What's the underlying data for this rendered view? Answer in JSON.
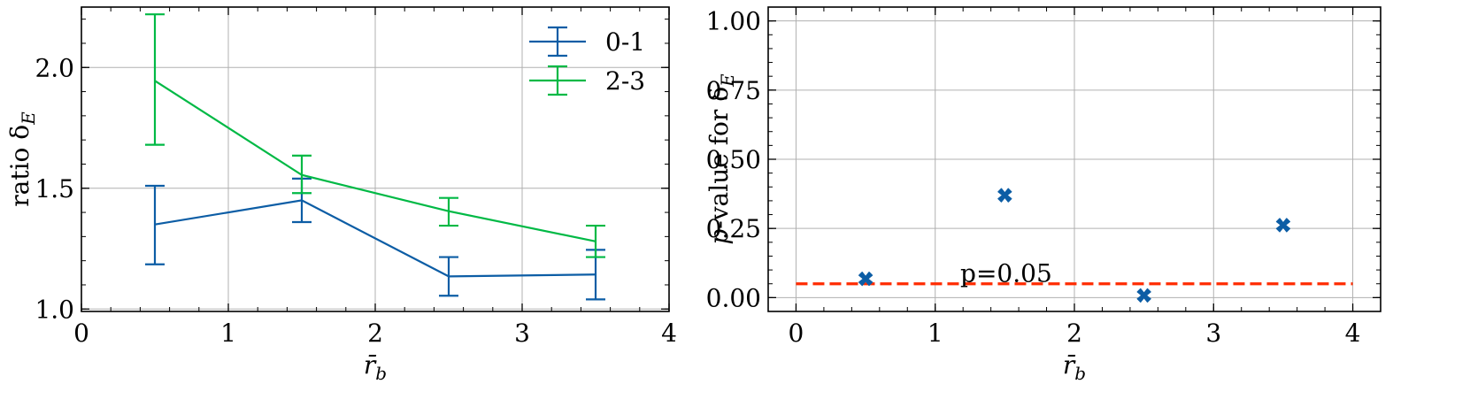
{
  "chart_data": [
    {
      "type": "line",
      "error_bars": true,
      "title": "",
      "xlabel": "r̄",
      "xlabel_sub": "b",
      "ylabel": "ratio δ",
      "ylabel_sub": "E",
      "xlim": [
        0,
        4
      ],
      "ylim": [
        0.99,
        2.25
      ],
      "xticks": [
        0,
        1,
        2,
        3,
        4
      ],
      "yticks": [
        1.0,
        1.5,
        2.0
      ],
      "ytick_labels": [
        "1.0",
        "1.5",
        "2.0"
      ],
      "grid": true,
      "legend": "top-right",
      "series": [
        {
          "name": "0-1",
          "color": "#0C5DA5",
          "x": [
            0.5,
            1.5,
            2.5,
            3.5
          ],
          "y": [
            1.35,
            1.45,
            1.135,
            1.143
          ],
          "err_low": [
            1.185,
            1.36,
            1.055,
            1.04
          ],
          "err_high": [
            1.51,
            1.54,
            1.215,
            1.245
          ]
        },
        {
          "name": "2-3",
          "color": "#00B945",
          "x": [
            0.5,
            1.5,
            2.5,
            3.5
          ],
          "y": [
            1.945,
            1.555,
            1.405,
            1.28
          ],
          "err_low": [
            1.68,
            1.48,
            1.345,
            1.215
          ],
          "err_high": [
            2.22,
            1.635,
            1.46,
            1.345
          ]
        }
      ]
    },
    {
      "type": "scatter",
      "title": "",
      "xlabel": "r̄",
      "xlabel_sub": "b",
      "ylabel_italic": "p",
      "ylabel": "-value for δ",
      "ylabel_sub": "E",
      "xlim": [
        -0.2,
        4.2
      ],
      "ylim": [
        -0.05,
        1.05
      ],
      "xticks": [
        0,
        1,
        2,
        3,
        4
      ],
      "yticks": [
        0.0,
        0.25,
        0.5,
        0.75,
        1.0
      ],
      "ytick_labels": [
        "0.00",
        "0.25",
        "0.50",
        "0.75",
        "1.00"
      ],
      "grid": true,
      "series": [
        {
          "color": "#0C5DA5",
          "marker": "X",
          "x": [
            0.5,
            1.5,
            2.5,
            3.5
          ],
          "y": [
            0.068,
            0.37,
            0.008,
            0.262
          ]
        }
      ],
      "hline": {
        "y": 0.05,
        "color": "#FF2C00",
        "style": "dashed",
        "x_from": 0,
        "x_to": 4
      },
      "annotation": {
        "text": "p=0.05",
        "x": 1.18,
        "y": 0.05
      }
    }
  ]
}
